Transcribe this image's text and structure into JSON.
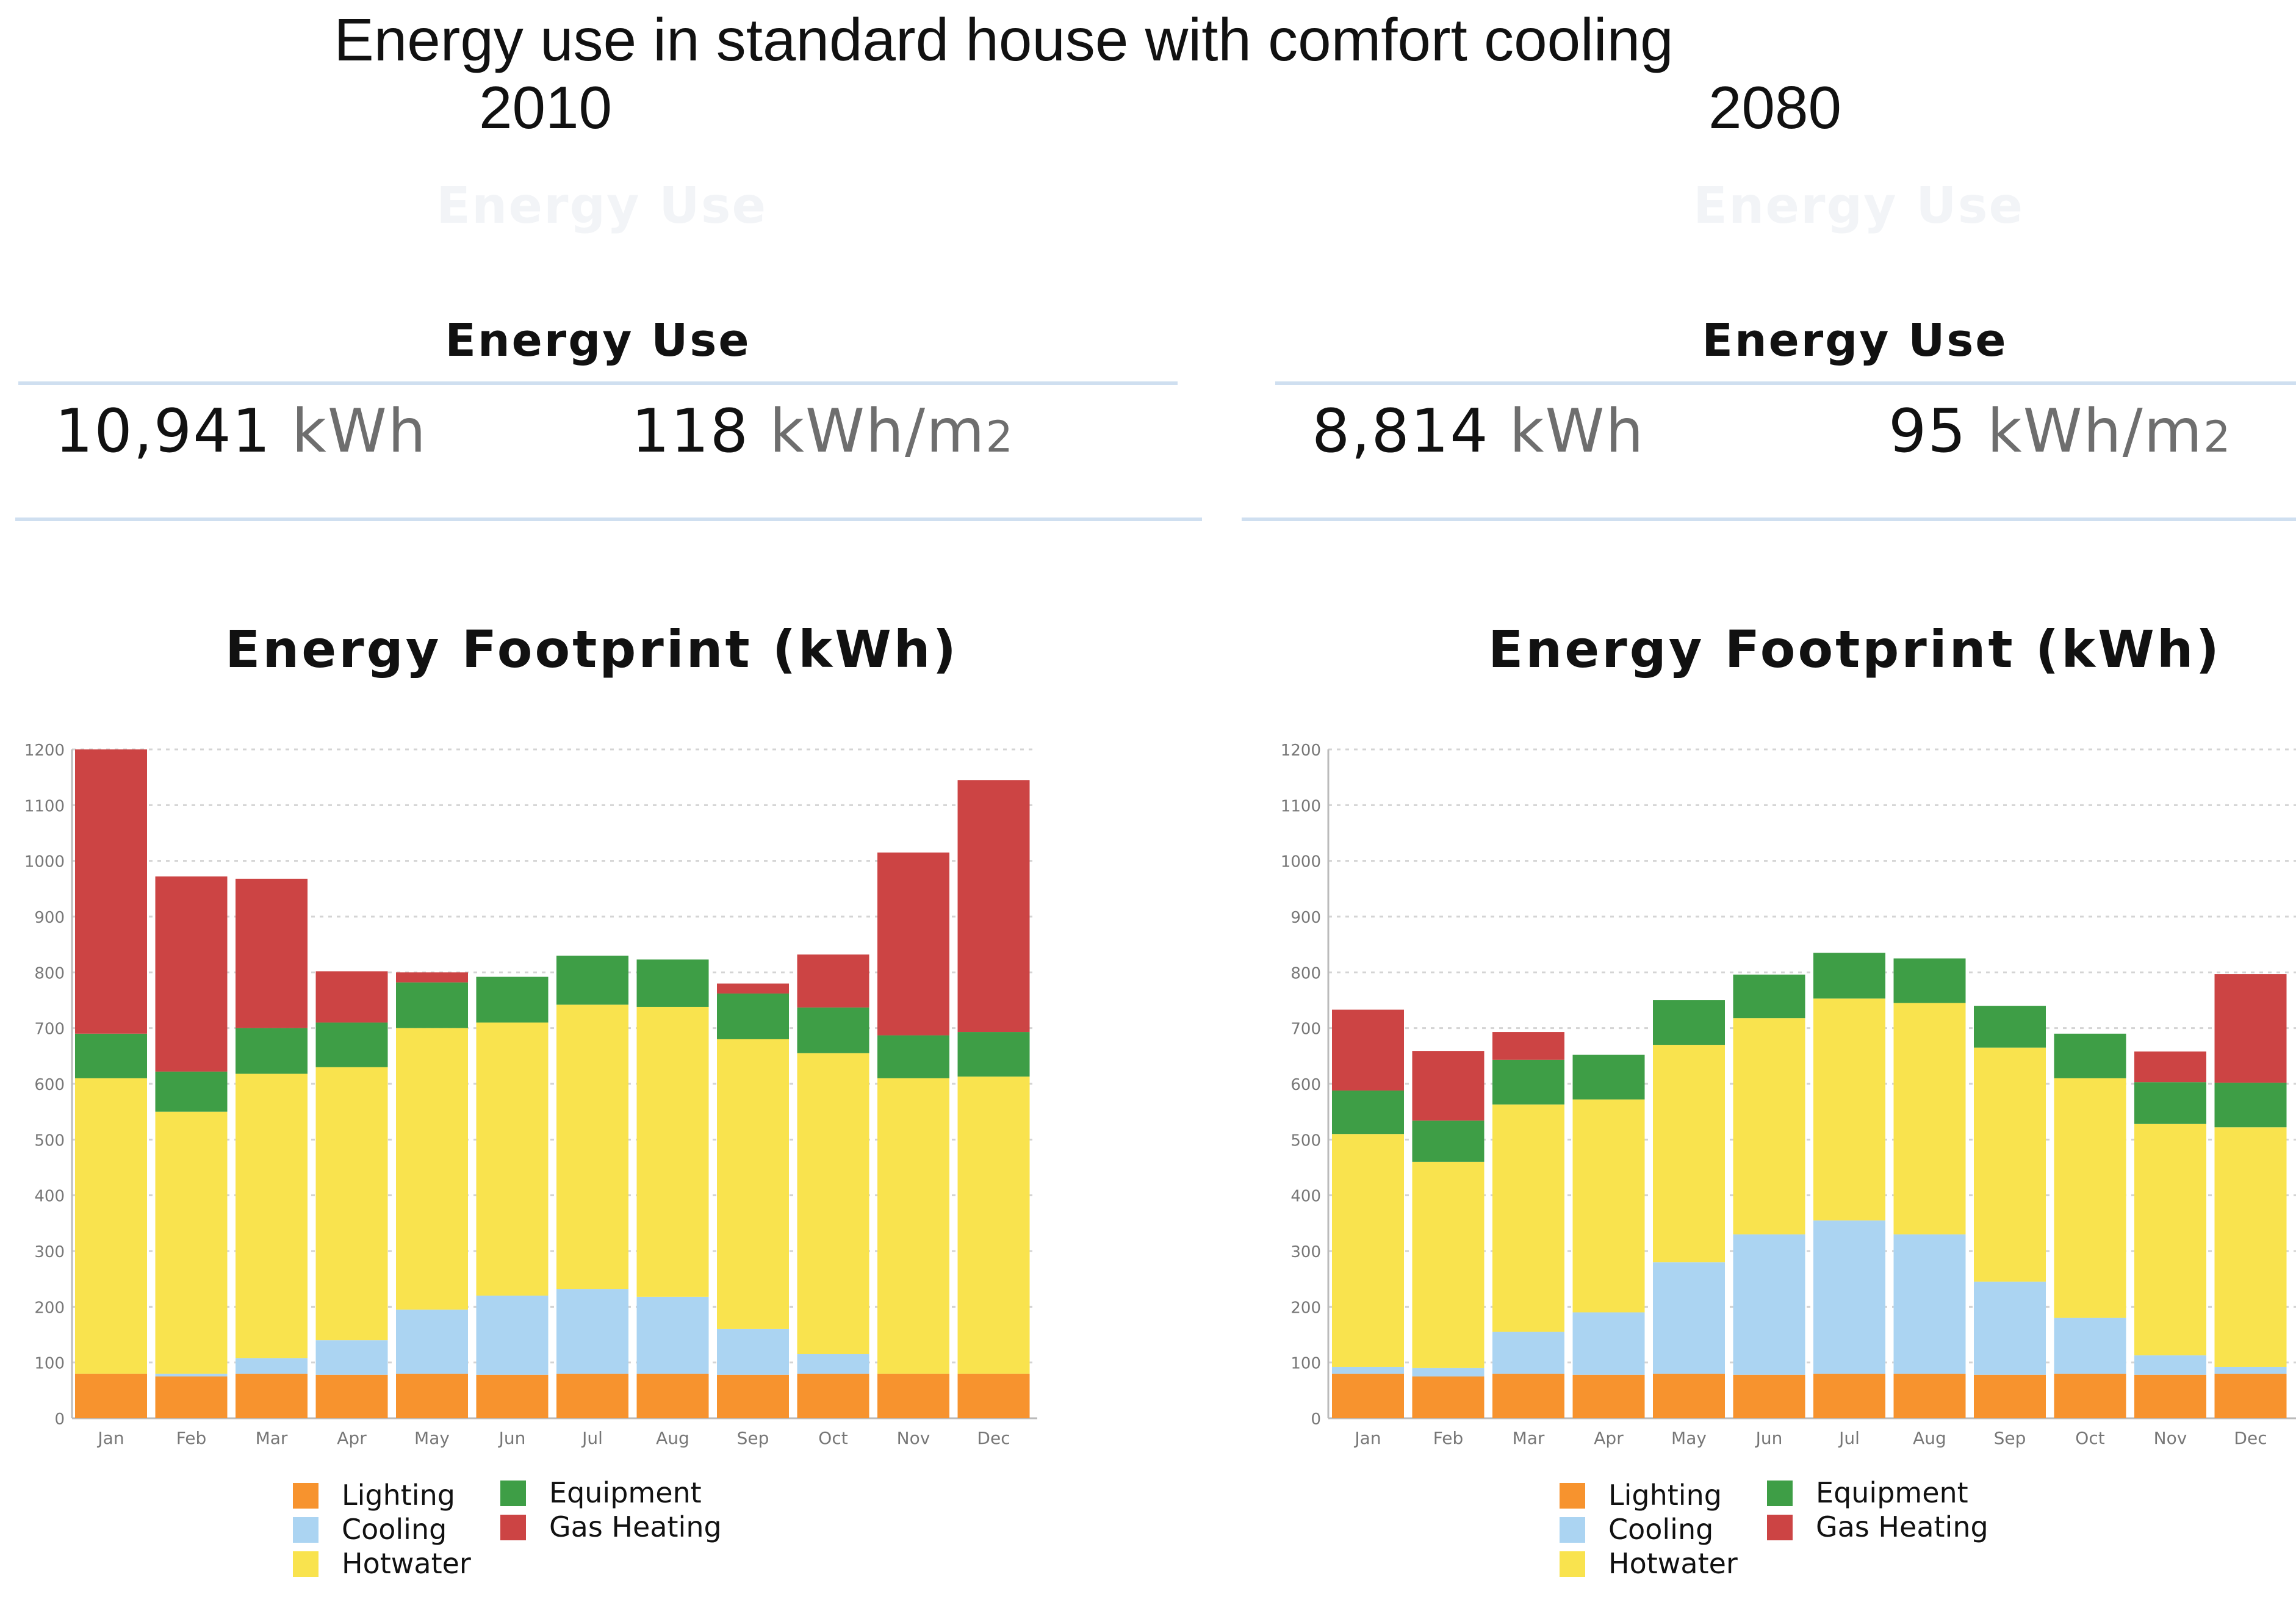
{
  "title": "Energy use in standard house with comfort cooling",
  "colors": {
    "Lighting": "#f7932e",
    "Cooling": "#abd4f2",
    "Hotwater": "#f9e34e",
    "Equipment": "#3e9e46",
    "Gas Heating": "#cc4444"
  },
  "panels": [
    {
      "year": "2010",
      "ghost_title": "Energy Use",
      "energy_use_title": "Energy Use",
      "total_value": "10,941",
      "total_unit": "kWh",
      "area_value": "118",
      "area_unit": "kWh/m",
      "area_unit_sup": "2"
    },
    {
      "year": "2080",
      "ghost_title": "Energy Use",
      "energy_use_title": "Energy Use",
      "total_value": "8,814",
      "total_unit": "kWh",
      "area_value": "95",
      "area_unit": "kWh/m",
      "area_unit_sup": "2"
    }
  ],
  "chart_data": [
    {
      "type": "bar",
      "stacked": true,
      "title": "Energy Footprint (kWh)",
      "categories": [
        "Jan",
        "Feb",
        "Mar",
        "Apr",
        "May",
        "Jun",
        "Jul",
        "Aug",
        "Sep",
        "Oct",
        "Nov",
        "Dec"
      ],
      "yticks": [
        0,
        100,
        200,
        300,
        400,
        500,
        600,
        700,
        800,
        900,
        1000,
        1100,
        1200
      ],
      "ylim": [
        0,
        1200
      ],
      "series": [
        {
          "name": "Lighting",
          "values": [
            80,
            75,
            80,
            78,
            80,
            78,
            80,
            80,
            78,
            80,
            80,
            80
          ]
        },
        {
          "name": "Cooling",
          "values": [
            0,
            5,
            28,
            62,
            115,
            142,
            152,
            138,
            82,
            35,
            0,
            0
          ]
        },
        {
          "name": "Hotwater",
          "values": [
            530,
            470,
            510,
            490,
            505,
            490,
            510,
            520,
            520,
            540,
            530,
            533
          ]
        },
        {
          "name": "Equipment",
          "values": [
            80,
            72,
            82,
            80,
            82,
            82,
            88,
            85,
            82,
            82,
            77,
            80
          ]
        },
        {
          "name": "Gas Heating",
          "values": [
            510,
            350,
            268,
            92,
            18,
            0,
            0,
            0,
            18,
            95,
            328,
            452
          ]
        }
      ],
      "legend": [
        "Lighting",
        "Equipment",
        "Cooling",
        "Gas Heating",
        "Hotwater"
      ]
    },
    {
      "type": "bar",
      "stacked": true,
      "title": "Energy Footprint (kWh)",
      "categories": [
        "Jan",
        "Feb",
        "Mar",
        "Apr",
        "May",
        "Jun",
        "Jul",
        "Aug",
        "Sep",
        "Oct",
        "Nov",
        "Dec"
      ],
      "yticks": [
        0,
        100,
        200,
        300,
        400,
        500,
        600,
        700,
        800,
        900,
        1000,
        1100,
        1200
      ],
      "ylim": [
        0,
        1200
      ],
      "series": [
        {
          "name": "Lighting",
          "values": [
            80,
            75,
            80,
            78,
            80,
            78,
            80,
            80,
            78,
            80,
            78,
            80
          ]
        },
        {
          "name": "Cooling",
          "values": [
            12,
            15,
            75,
            112,
            200,
            252,
            275,
            250,
            167,
            100,
            35,
            12
          ]
        },
        {
          "name": "Hotwater",
          "values": [
            418,
            370,
            408,
            382,
            390,
            388,
            398,
            415,
            420,
            430,
            415,
            430
          ]
        },
        {
          "name": "Equipment",
          "values": [
            78,
            74,
            80,
            80,
            80,
            78,
            82,
            80,
            75,
            80,
            75,
            80
          ]
        },
        {
          "name": "Gas Heating",
          "values": [
            145,
            125,
            50,
            0,
            0,
            0,
            0,
            0,
            0,
            0,
            55,
            195
          ]
        }
      ],
      "legend": [
        "Lighting",
        "Equipment",
        "Cooling",
        "Gas Heating",
        "Hotwater"
      ]
    }
  ]
}
